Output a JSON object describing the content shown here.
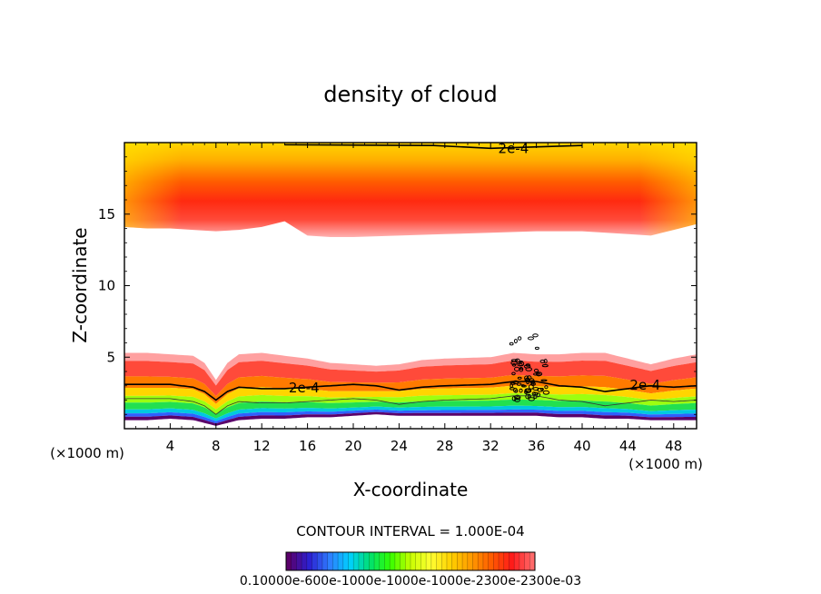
{
  "chart_data": {
    "type": "heatmap",
    "title": "density of cloud",
    "xlabel": "X-coordinate",
    "ylabel": "Z-coordinate",
    "x_unit": "(×1000 m)",
    "y_unit": "(×1000 m)",
    "xlim": [
      0,
      50
    ],
    "ylim": [
      0,
      20
    ],
    "x_ticks": [
      4,
      8,
      12,
      16,
      20,
      24,
      28,
      32,
      36,
      40,
      44,
      48
    ],
    "y_ticks": [
      5,
      10,
      15
    ],
    "contour_interval_label": "CONTOUR INTERVAL = 1.000E-04",
    "contour_labels": [
      "2e-4",
      "2e-4",
      "2e-4"
    ],
    "colorbar_tick_labels": "0.10000e-600e-1000e-1000e-1000e-2300e-2300e-03",
    "upper_layer": {
      "x": [
        0,
        2,
        4,
        6,
        8,
        10,
        12,
        14,
        16,
        18,
        20,
        24,
        28,
        32,
        36,
        40,
        44,
        46,
        48,
        50
      ],
      "bottom_z": [
        14.1,
        14.0,
        14.0,
        13.9,
        13.8,
        13.9,
        14.1,
        14.5,
        13.5,
        13.4,
        13.4,
        13.5,
        13.6,
        13.7,
        13.8,
        13.8,
        13.6,
        13.5,
        13.9,
        14.3
      ],
      "core_z": 16.0,
      "top_z": 20
    },
    "lower_layer": {
      "x": [
        0,
        2,
        4,
        6,
        7,
        8,
        9,
        10,
        12,
        14,
        16,
        18,
        20,
        22,
        24,
        26,
        28,
        32,
        34,
        36,
        38,
        40,
        42,
        44,
        46,
        48,
        50
      ],
      "top_z": [
        5.3,
        5.3,
        5.2,
        5.1,
        4.6,
        3.4,
        4.6,
        5.2,
        5.3,
        5.1,
        4.9,
        4.6,
        4.5,
        4.4,
        4.5,
        4.8,
        4.9,
        5.0,
        5.3,
        5.2,
        5.2,
        5.3,
        5.3,
        4.9,
        4.5,
        4.9,
        5.2
      ],
      "contour_2e4_z": [
        3.1,
        3.1,
        3.1,
        2.9,
        2.6,
        2.0,
        2.6,
        2.9,
        2.8,
        2.8,
        2.9,
        3.0,
        3.1,
        3.0,
        2.7,
        2.9,
        3.0,
        3.1,
        3.3,
        3.3,
        3.0,
        2.9,
        2.6,
        2.8,
        3.0,
        2.9,
        3.0
      ],
      "bottom_z": [
        0.6,
        0.6,
        0.7,
        0.6,
        0.4,
        0.2,
        0.4,
        0.6,
        0.7,
        0.7,
        0.8,
        0.8,
        0.9,
        1.0,
        0.9,
        0.9,
        0.9,
        0.9,
        0.9,
        0.9,
        0.8,
        0.8,
        0.7,
        0.7,
        0.6,
        0.6,
        0.6
      ]
    },
    "colormap": [
      "#5a006a",
      "#2c1fd0",
      "#2f7cff",
      "#00d0ff",
      "#00e070",
      "#33ff00",
      "#c8ff00",
      "#ffff33",
      "#ffd000",
      "#ff9a00",
      "#ff5a00",
      "#ff1a1a",
      "#ff6a6a"
    ]
  }
}
